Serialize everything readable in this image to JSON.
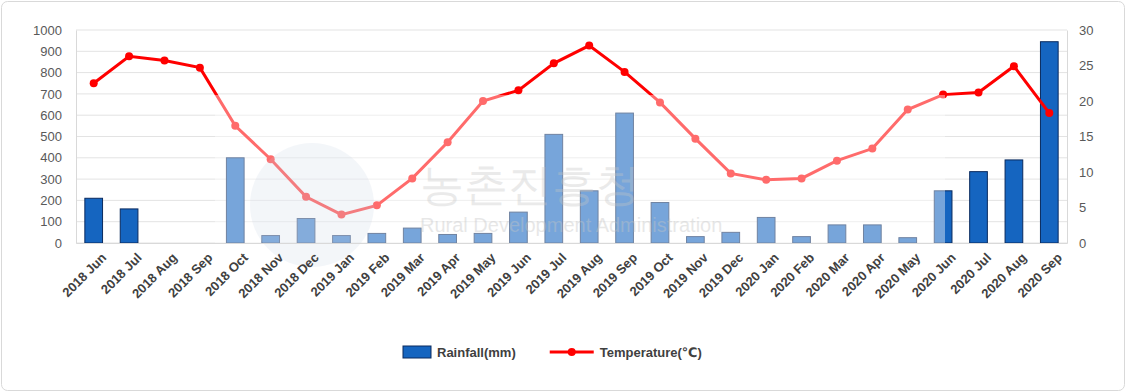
{
  "chart_data": {
    "type": "bar",
    "categories": [
      "2018 Jun",
      "2018 Jul",
      "2018 Aug",
      "2018 Sep",
      "2018 Oct",
      "2018 Nov",
      "2018 Dec",
      "2019 Jan",
      "2019 Feb",
      "2019 Mar",
      "2019 Apr",
      "2019 May",
      "2019 Jun",
      "2019 Jul",
      "2019 Aug",
      "2019 Sep",
      "2019 Oct",
      "2019 Nov",
      "2019 Dec",
      "2020 Jan",
      "2020 Feb",
      "2020 Mar",
      "2020 Apr",
      "2020 May",
      "2020 Jun",
      "2020 Jul",
      "2020 Aug",
      "2020 Sep"
    ],
    "series": [
      {
        "name": "Rainfall(mm)",
        "type": "bar",
        "color": "#1565c0",
        "values": [
          210,
          160,
          null,
          null,
          400,
          35,
          115,
          35,
          45,
          70,
          40,
          45,
          145,
          510,
          245,
          610,
          190,
          30,
          50,
          120,
          30,
          85,
          85,
          25,
          245,
          335,
          390,
          945
        ]
      },
      {
        "name": "Temperature(℃)",
        "type": "line",
        "color": "#ff0000",
        "marker": "circle",
        "axis": "y2",
        "values": [
          22.5,
          26.3,
          25.7,
          24.7,
          16.5,
          11.8,
          6.5,
          4.0,
          5.3,
          9.1,
          14.2,
          20.0,
          21.5,
          25.3,
          27.8,
          24.1,
          19.8,
          14.7,
          9.8,
          8.9,
          9.1,
          11.6,
          13.3,
          18.8,
          20.9,
          21.2,
          24.9,
          18.3
        ]
      }
    ],
    "ylim": [
      0,
      1000
    ],
    "yticks": [
      0,
      100,
      200,
      300,
      400,
      500,
      600,
      700,
      800,
      900,
      1000
    ],
    "y2lim": [
      0,
      30
    ],
    "y2ticks": [
      0,
      5,
      10,
      15,
      20,
      25,
      30
    ],
    "grid": true,
    "legend": "bottom",
    "annotations": [
      "농촌진흥청",
      "Rural Development Administration"
    ]
  }
}
